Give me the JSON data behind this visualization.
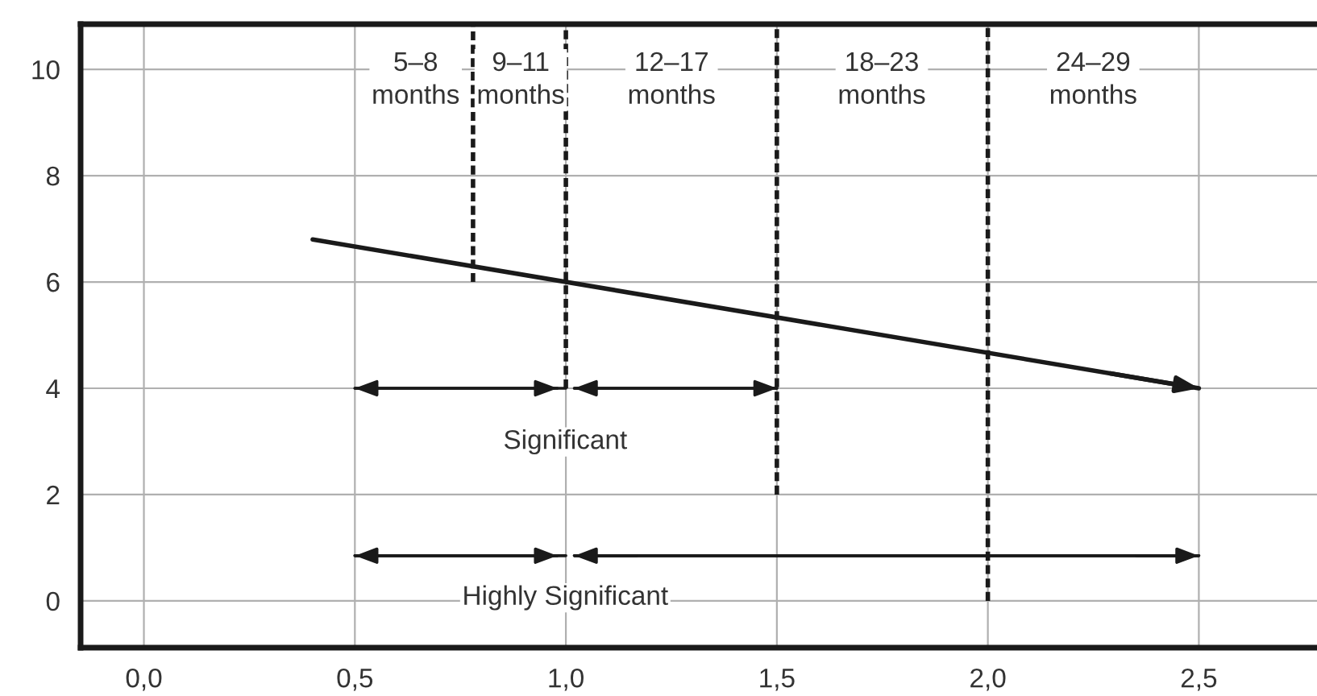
{
  "chart_data": {
    "type": "line",
    "xlim": [
      -0.15,
      2.78
    ],
    "ylim": [
      -0.88,
      10.85
    ],
    "xticks": [
      {
        "value": 0,
        "label": "0,0"
      },
      {
        "value": 0.5,
        "label": "0,5"
      },
      {
        "value": 1.0,
        "label": "1,0"
      },
      {
        "value": 1.5,
        "label": "1,5"
      },
      {
        "value": 2.0,
        "label": "2,0"
      },
      {
        "value": 2.5,
        "label": "2,5"
      }
    ],
    "yticks": [
      0,
      2,
      4,
      6,
      8,
      10
    ],
    "grid": true,
    "series": [
      {
        "x": [
          0.4,
          2.5
        ],
        "values": [
          6.8,
          4.0
        ],
        "color": "#1a1a1a",
        "line_style": "solid"
      },
      {
        "x": [
          0.78,
          0.78
        ],
        "values": [
          6.0,
          10.85
        ],
        "color": "#1a1a1a",
        "line_style": "dashed"
      },
      {
        "x": [
          1.0,
          1.0
        ],
        "values": [
          4.0,
          10.85
        ],
        "color": "#1a1a1a",
        "line_style": "dashed"
      },
      {
        "x": [
          1.5,
          1.5
        ],
        "values": [
          2.0,
          10.85
        ],
        "color": "#1a1a1a",
        "line_style": "dashed"
      },
      {
        "x": [
          2.0,
          2.0
        ],
        "values": [
          0.0,
          10.85
        ],
        "color": "#1a1a1a",
        "line_style": "dashed"
      },
      {
        "x": [
          1.0,
          0.5
        ],
        "values": [
          4.0,
          4.0
        ],
        "color": "#1a1a1a",
        "line_style": "solid"
      },
      {
        "x": [
          0.5,
          0.98
        ],
        "values": [
          4.0,
          4.0
        ],
        "color": "#1a1a1a",
        "line_style": "solid"
      },
      {
        "x": [
          1.5,
          1.02
        ],
        "values": [
          4.0,
          4.0
        ],
        "color": "#1a1a1a",
        "line_style": "solid"
      },
      {
        "x": [
          1.02,
          1.5
        ],
        "values": [
          4.0,
          4.0
        ],
        "color": "#1a1a1a",
        "line_style": "solid"
      },
      {
        "x": [
          1.0,
          0.5
        ],
        "values": [
          0.85,
          0.85
        ],
        "color": "#1a1a1a",
        "line_style": "solid"
      },
      {
        "x": [
          0.5,
          0.98
        ],
        "values": [
          0.85,
          0.85
        ],
        "color": "#1a1a1a",
        "line_style": "solid"
      },
      {
        "x": [
          2.5,
          1.02
        ],
        "values": [
          0.85,
          0.85
        ],
        "color": "#1a1a1a",
        "line_style": "solid"
      },
      {
        "x": [
          1.02,
          2.5
        ],
        "values": [
          0.85,
          0.85
        ],
        "color": "#1a1a1a",
        "line_style": "solid"
      }
    ],
    "annotations": [
      "5–8\nmonths",
      "9–11\nmonths",
      "12–17\nmonths",
      "18–23\nmonths",
      "24–29\nmonths",
      "Significant",
      "Highly Significant"
    ]
  }
}
